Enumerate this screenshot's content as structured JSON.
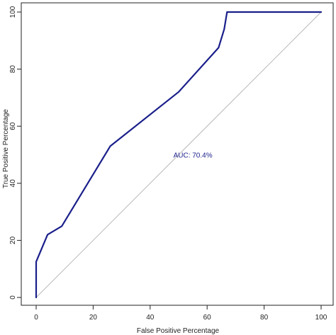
{
  "chart_data": {
    "type": "line",
    "title": "",
    "xlabel": "False Positive Percentage",
    "ylabel": "True Positive Percentage",
    "xlim": [
      0,
      100
    ],
    "ylim": [
      0,
      100
    ],
    "x_ticks": [
      "0",
      "20",
      "40",
      "60",
      "80",
      "100"
    ],
    "y_ticks": [
      "0",
      "20",
      "40",
      "60",
      "80",
      "100"
    ],
    "grid": false,
    "series": [
      {
        "x": [
          0,
          0,
          4,
          9,
          26,
          50,
          64,
          66,
          67,
          100
        ],
        "y": [
          0,
          12.5,
          22,
          25,
          53,
          72,
          87.5,
          94,
          100,
          100
        ],
        "color": "#1a1f8a"
      }
    ],
    "reference_line": {
      "x": [
        0,
        100
      ],
      "y": [
        0,
        100
      ],
      "color": "#b8b8b8"
    },
    "annotation": {
      "text": "AUC: 70.4%",
      "x": 55,
      "y": 49,
      "color": "#1a1f8a"
    }
  }
}
